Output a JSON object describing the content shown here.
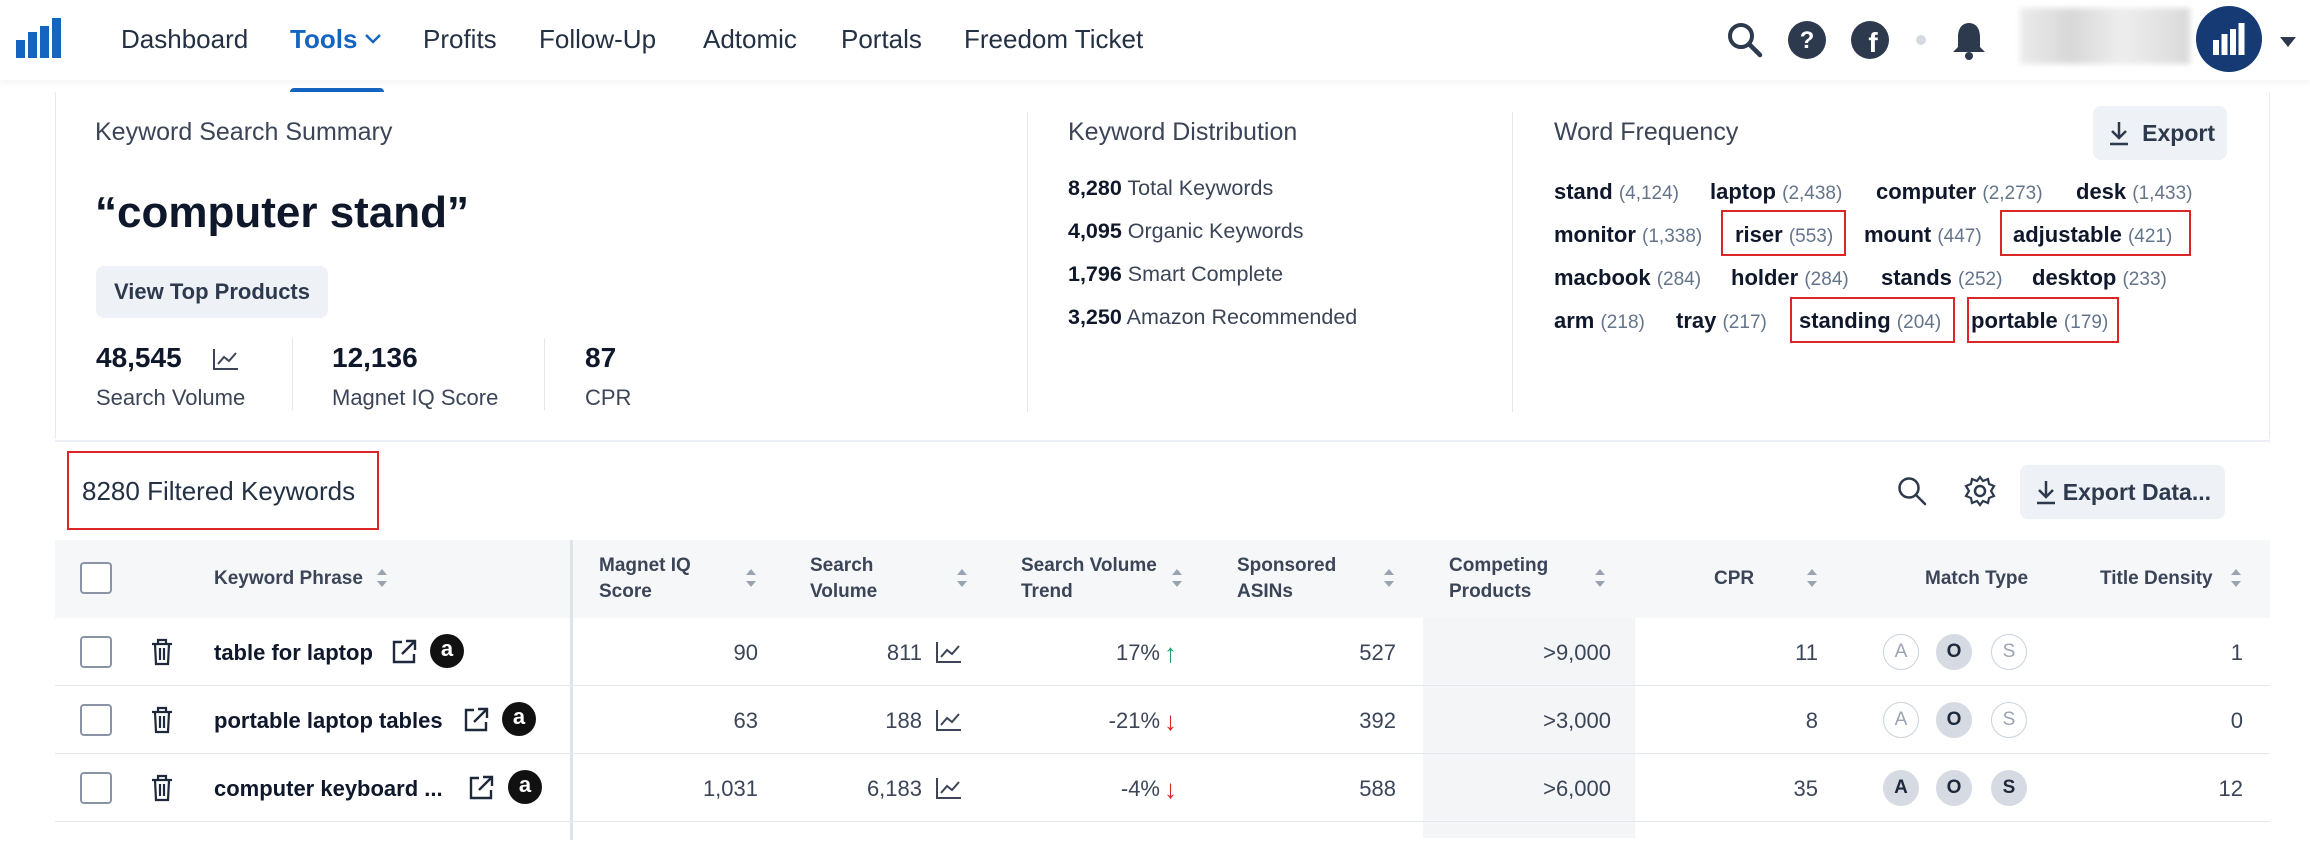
{
  "nav": {
    "items": [
      "Dashboard",
      "Tools",
      "Profits",
      "Follow-Up",
      "Adtomic",
      "Portals",
      "Freedom Ticket"
    ],
    "active": "Tools"
  },
  "summary": {
    "label": "Keyword Search Summary",
    "query": "“computer stand”",
    "view_top": "View Top Products",
    "stats": [
      {
        "value": "48,545",
        "label": "Search Volume"
      },
      {
        "value": "12,136",
        "label": "Magnet IQ Score"
      },
      {
        "value": "87",
        "label": "CPR"
      }
    ]
  },
  "distribution": {
    "label": "Keyword Distribution",
    "rows": [
      {
        "value": "8,280",
        "label": "Total Keywords"
      },
      {
        "value": "4,095",
        "label": "Organic Keywords"
      },
      {
        "value": "1,796",
        "label": "Smart Complete"
      },
      {
        "value": "3,250",
        "label": "Amazon Recommended"
      }
    ]
  },
  "word_freq": {
    "label": "Word Frequency",
    "export": "Export",
    "words": [
      {
        "w": "stand",
        "n": "(4,124)"
      },
      {
        "w": "laptop",
        "n": "(2,438)"
      },
      {
        "w": "computer",
        "n": "(2,273)"
      },
      {
        "w": "desk",
        "n": "(1,433)"
      },
      {
        "w": "monitor",
        "n": "(1,338)"
      },
      {
        "w": "riser",
        "n": "(553)"
      },
      {
        "w": "mount",
        "n": "(447)"
      },
      {
        "w": "adjustable",
        "n": "(421)"
      },
      {
        "w": "macbook",
        "n": "(284)"
      },
      {
        "w": "holder",
        "n": "(284)"
      },
      {
        "w": "stands",
        "n": "(252)"
      },
      {
        "w": "desktop",
        "n": "(233)"
      },
      {
        "w": "arm",
        "n": "(218)"
      },
      {
        "w": "tray",
        "n": "(217)"
      },
      {
        "w": "standing",
        "n": "(204)"
      },
      {
        "w": "portable",
        "n": "(179)"
      }
    ]
  },
  "table": {
    "filtered": "8280 Filtered Keywords",
    "export_data": "Export Data...",
    "headers": {
      "phrase": "Keyword Phrase",
      "miq1": "Magnet IQ",
      "miq2": "Score",
      "sv1": "Search",
      "sv2": "Volume",
      "svt1": "Search Volume",
      "svt2": "Trend",
      "sa1": "Sponsored",
      "sa2": "ASINs",
      "cp1": "Competing",
      "cp2": "Products",
      "cpr": "CPR",
      "match": "Match Type",
      "td": "Title Density"
    },
    "rows": [
      {
        "kw": "table for laptop",
        "miq": "90",
        "sv": "811",
        "trend": "17%",
        "dir": "↑",
        "sa": "527",
        "cp": ">9,000",
        "cpr": "11",
        "td": "1"
      },
      {
        "kw": "portable laptop tables",
        "miq": "63",
        "sv": "188",
        "trend": "-21%",
        "dir": "↓",
        "sa": "392",
        "cp": ">3,000",
        "cpr": "8",
        "td": "0"
      },
      {
        "kw": "computer keyboard ...",
        "miq": "1,031",
        "sv": "6,183",
        "trend": "-4%",
        "dir": "↓",
        "sa": "588",
        "cp": ">6,000",
        "cpr": "35",
        "td": "12"
      }
    ],
    "match_letters": [
      "A",
      "O",
      "S"
    ]
  },
  "icons": [
    "bar-logo-icon",
    "chevron-down-icon",
    "search-icon",
    "help-icon",
    "facebook-icon",
    "bell-icon",
    "caret-down-icon",
    "chart-line-icon",
    "download-icon",
    "gear-icon",
    "sort-icon",
    "trash-icon",
    "external-link-icon",
    "amazon-icon",
    "arrow-up-icon",
    "arrow-down-icon"
  ]
}
